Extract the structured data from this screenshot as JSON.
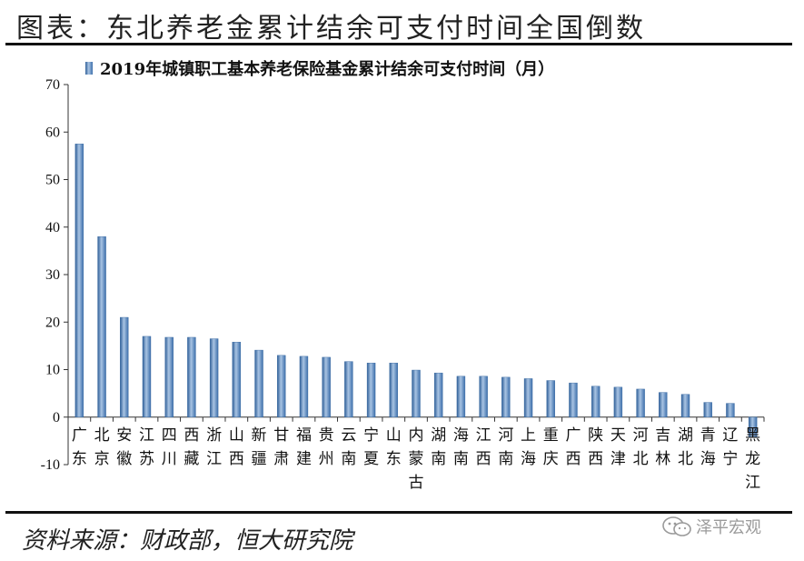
{
  "header": {
    "title": "图表：东北养老金累计结余可支付时间全国倒数"
  },
  "footer": {
    "source": "资料来源：财政部，恒大研究院",
    "watermark": "泽平宏观"
  },
  "colors": {
    "bar": "#4f7fba",
    "bar_light": "#a9c4e3",
    "axis": "#333333"
  },
  "chart_data": {
    "type": "bar",
    "title": "",
    "legend": {
      "position": "top-left",
      "entries": [
        "2019年城镇职工基本养老保险基金累计结余可支付时间（月）"
      ]
    },
    "series": [
      {
        "name": "2019年城镇职工基本养老保险基金累计结余可支付时间（月）",
        "values": [
          57.5,
          38,
          21,
          17,
          16.8,
          16.8,
          16.5,
          15.8,
          14.1,
          13,
          12.8,
          12.6,
          11.7,
          11.4,
          11.4,
          9.9,
          9.3,
          8.6,
          8.6,
          8.4,
          8.1,
          7.7,
          7.2,
          6.5,
          6.3,
          5.9,
          5.2,
          4.8,
          3.1,
          2.9,
          -4.2
        ]
      }
    ],
    "categories": [
      "广东",
      "北京",
      "安徽",
      "江苏",
      "四川",
      "西藏",
      "浙江",
      "山西",
      "新疆",
      "甘肃",
      "福建",
      "贵州",
      "云南",
      "宁夏",
      "山东",
      "内蒙古",
      "湖南",
      "海南",
      "江西",
      "河南",
      "上海",
      "重庆",
      "广西",
      "陕西",
      "天津",
      "河北",
      "吉林",
      "湖北",
      "青海",
      "辽宁",
      "黑龙江"
    ],
    "ylim": [
      -10,
      70
    ],
    "yticks": [
      "-10",
      "0",
      "10",
      "20",
      "30",
      "40",
      "50",
      "60",
      "70"
    ],
    "xlabel": "",
    "ylabel": "",
    "grid": false
  }
}
